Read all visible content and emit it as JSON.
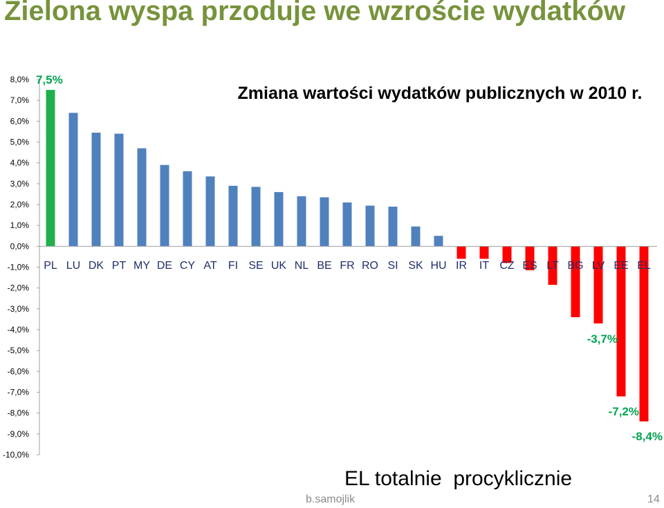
{
  "slide": {
    "title": "Zielona wyspa przoduje we wzroście wydatków",
    "footer": "b.samojlik",
    "page_number": "14"
  },
  "colors": {
    "first_bar": "#1fb04b",
    "positive": "#4f81bd",
    "negative": "#ff0000",
    "annotation": "#00a550",
    "title": "#77933c"
  },
  "chart_data": {
    "type": "bar",
    "title": "Zmiana wartości wydatków publicznych w 2010 r.",
    "categories": [
      "PL",
      "LU",
      "DK",
      "PT",
      "MY",
      "DE",
      "CY",
      "AT",
      "FI",
      "SE",
      "UK",
      "NL",
      "BE",
      "FR",
      "RO",
      "SI",
      "SK",
      "HU",
      "IR",
      "IT",
      "CZ",
      "ES",
      "LT",
      "BG",
      "LV",
      "EE",
      "EL"
    ],
    "values": [
      7.5,
      6.4,
      5.45,
      5.4,
      4.7,
      3.9,
      3.6,
      3.35,
      2.9,
      2.85,
      2.6,
      2.4,
      2.35,
      2.1,
      1.95,
      1.9,
      0.95,
      0.5,
      -0.6,
      -0.6,
      -0.8,
      -1.15,
      -1.85,
      -3.4,
      -3.7,
      -7.2,
      -8.4
    ],
    "ylim": [
      -10,
      8
    ],
    "yticks": [
      "8,0%",
      "7,0%",
      "6,0%",
      "5,0%",
      "4,0%",
      "3,0%",
      "2,0%",
      "1,0%",
      "0,0%",
      "-1,0%",
      "-2,0%",
      "-3,0%",
      "-4,0%",
      "-5,0%",
      "-6,0%",
      "-7,0%",
      "-8,0%",
      "-9,0%",
      "-10,0%"
    ],
    "annotations": [
      {
        "category": "PL",
        "text": "7,5%"
      },
      {
        "category": "LV",
        "text": "-3,7%"
      },
      {
        "category": "EE",
        "text": "-7,2%"
      },
      {
        "category": "EL",
        "text": "-8,4%"
      }
    ],
    "caption": "EL totalnie  procyklicznie"
  }
}
